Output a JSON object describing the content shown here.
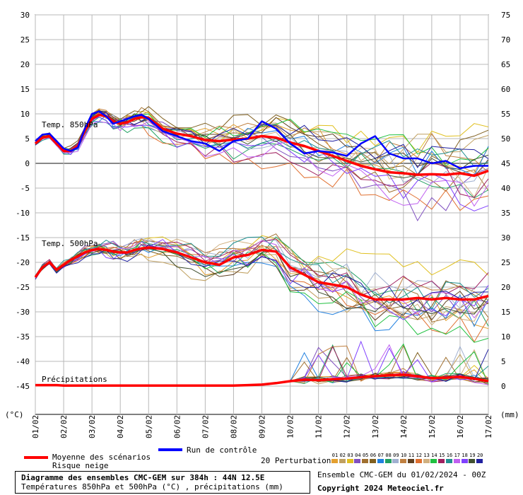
{
  "chart_data": {
    "type": "line",
    "title": "Diagramme des ensembles CMC-GEM sur 384h : 44N 12.5E",
    "subtitle": "Températures 850hPa et 500hPa (°C) , précipitations (mm)",
    "x_labels": [
      "01/02",
      "02/02",
      "03/02",
      "04/02",
      "05/02",
      "06/02",
      "07/02",
      "08/02",
      "09/02",
      "10/02",
      "11/02",
      "12/02",
      "13/02",
      "14/02",
      "15/02",
      "16/02",
      "17/02"
    ],
    "y_left_ticks": [
      30,
      25,
      20,
      15,
      10,
      5,
      0,
      -5,
      -10,
      -15,
      -20,
      -25,
      -30,
      -35,
      -40,
      -45
    ],
    "y_right_ticks": [
      75,
      70,
      65,
      60,
      55,
      50,
      45,
      40,
      35,
      30,
      25,
      20,
      15,
      10,
      5,
      0
    ],
    "y_left_unit": "(°C)",
    "y_right_unit": "(mm)",
    "ylim_left": [
      -45,
      30
    ],
    "ylim_right": [
      0,
      75
    ],
    "grid": true,
    "section_labels": [
      "Temp. 850hPa",
      "Temp. 500hPa",
      "Précipitations"
    ],
    "x_days": [
      0,
      0.25,
      0.5,
      0.75,
      1,
      1.25,
      1.5,
      1.75,
      2,
      2.25,
      2.5,
      2.75,
      3,
      3.25,
      3.5,
      3.75,
      4,
      4.5,
      5,
      5.5,
      6,
      6.5,
      7,
      7.5,
      8,
      8.5,
      9,
      9.5,
      10,
      10.5,
      11,
      11.5,
      12,
      12.5,
      13,
      13.5,
      14,
      14.5,
      15,
      15.5,
      16
    ],
    "series": [
      {
        "name": "Moyenne des scénarios",
        "group": "t850",
        "color": "#ff0000",
        "values": [
          4,
          5.2,
          5.5,
          4,
          2.5,
          2.5,
          3.5,
          6.5,
          9,
          9.8,
          9.5,
          8.5,
          8,
          8.3,
          9,
          9.3,
          9.2,
          7,
          6,
          5.5,
          4.7,
          4.5,
          4.8,
          5,
          5.5,
          5.2,
          4.2,
          3.5,
          2.5,
          1.5,
          0.5,
          -0.5,
          -1.2,
          -1.8,
          -2,
          -2.3,
          -2.2,
          -2.3,
          -2,
          -2.5,
          -1.5
        ]
      },
      {
        "name": "Run de contrôle",
        "group": "t850",
        "color": "#0000ff",
        "values": [
          4.5,
          5.8,
          6,
          4.5,
          3,
          2.5,
          3.2,
          7,
          10,
          10.5,
          9.5,
          8,
          8.5,
          9,
          9.5,
          9.8,
          9,
          6.5,
          5.5,
          4.5,
          4,
          2.5,
          4.5,
          5,
          8.5,
          7,
          4,
          2,
          2.5,
          2.2,
          1.5,
          4,
          5.5,
          2,
          1,
          1,
          0,
          0.5,
          -1,
          -0.5,
          -0.5
        ]
      },
      {
        "name": "Moyenne des scénarios",
        "group": "t500",
        "color": "#ff0000",
        "values": [
          -23,
          -21,
          -20,
          -21.5,
          -20.5,
          -19.5,
          -18.8,
          -18,
          -17.5,
          -17.3,
          -17.5,
          -17.8,
          -18,
          -18,
          -17.5,
          -17.2,
          -17,
          -17.3,
          -18,
          -19,
          -20,
          -20.5,
          -19,
          -18.5,
          -17.5,
          -17.8,
          -21,
          -22.5,
          -24,
          -24.5,
          -25,
          -26.5,
          -27.5,
          -27.5,
          -27.5,
          -27.2,
          -27.5,
          -27.2,
          -27.5,
          -27.5,
          -26.8
        ]
      },
      {
        "name": "Moyenne des scénarios",
        "group": "precip",
        "color": "#ff0000",
        "values": [
          0.2,
          0.2,
          0.2,
          0.2,
          0.1,
          0.1,
          0.1,
          0.1,
          0.1,
          0.1,
          0.1,
          0.1,
          0.1,
          0.1,
          0.1,
          0.1,
          0.1,
          0.1,
          0.1,
          0.1,
          0.1,
          0.1,
          0.1,
          0.2,
          0.3,
          0.6,
          1,
          1.3,
          1.2,
          1.4,
          1.5,
          1.8,
          2,
          2.2,
          2.3,
          2,
          1.6,
          1.7,
          1.9,
          1.5,
          1
        ]
      }
    ],
    "legend": {
      "mean_label": "Moyenne des scénarios",
      "snow_label": "Risque neige",
      "control_label": "Run de contrôle",
      "perturbations_label": "20 Perturbations",
      "perturbation_numbers": [
        "01",
        "02",
        "03",
        "04",
        "05",
        "06",
        "07",
        "08",
        "09",
        "10",
        "11",
        "12",
        "13",
        "14",
        "15",
        "16",
        "17",
        "18",
        "19",
        "20"
      ],
      "perturbation_colors": [
        "#e4a030",
        "#c0a060",
        "#e0c020",
        "#8050c0",
        "#a07030",
        "#806020",
        "#2080e0",
        "#20a060",
        "#a0b0d0",
        "#c08040",
        "#604020",
        "#e07030",
        "#d0b080",
        "#20c040",
        "#a02060",
        "#209090",
        "#c060f0",
        "#8040ff",
        "#405030",
        "#2020a0"
      ]
    },
    "footer": {
      "ensemble_label": "Ensemble CMC-GEM du 01/02/2024 - 00Z",
      "copyright": "Copyright 2024 Meteociel.fr"
    }
  }
}
